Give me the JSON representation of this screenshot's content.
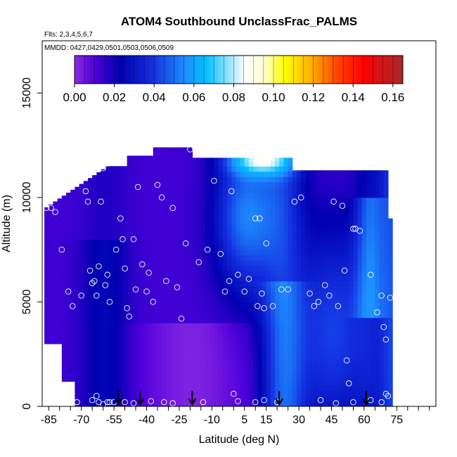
{
  "chart_data": {
    "type": "heatmap",
    "title": "ATOM4 Southbound UnclassFrac_PALMS",
    "subtitle_flights": "Flts: 2,3,4,5,6,7",
    "subtitle_dates": "MMDD: 0427,0429,0501,0503,0506,0509",
    "xlabel": "Latitude (deg N)",
    "ylabel": "Altitude (m)",
    "xlim": [
      -88,
      93
    ],
    "ylim": [
      0,
      17500
    ],
    "x_ticks": [
      -85,
      -70,
      -55,
      -40,
      -25,
      -10,
      5,
      15,
      30,
      45,
      60,
      75
    ],
    "x_tick_labels": [
      "-85",
      "-70",
      "-55",
      "-40",
      "-25",
      "-10",
      "5",
      "15",
      "30",
      "45",
      "60",
      "75"
    ],
    "y_ticks": [
      0,
      5000,
      10000,
      15000
    ],
    "y_tick_labels": [
      "0",
      "5000",
      "10000",
      "15000"
    ],
    "colorbar": {
      "min": 0,
      "max": 0.165,
      "ticks": [
        0.0,
        0.02,
        0.04,
        0.06,
        0.08,
        0.1,
        0.12,
        0.14,
        0.16
      ],
      "tick_labels": [
        "0.00",
        "0.02",
        "0.04",
        "0.06",
        "0.08",
        "0.10",
        "0.12",
        "0.14",
        "0.16"
      ],
      "colors": [
        "#8a2be2",
        "#0000cd",
        "#1e90ff",
        "#00bfff",
        "#ffffff",
        "#ffff00",
        "#ff8c00",
        "#ff0000",
        "#a52a2a"
      ]
    },
    "arrows_latitude": [
      -53,
      -43,
      -19,
      21,
      61
    ],
    "points": [
      [
        -86,
        9500
      ],
      [
        -84,
        9500
      ],
      [
        -82,
        9300
      ],
      [
        -79,
        7500
      ],
      [
        -76,
        5500
      ],
      [
        -74,
        4800
      ],
      [
        -70,
        5300
      ],
      [
        -68,
        10300
      ],
      [
        -67,
        9800
      ],
      [
        -66,
        6500
      ],
      [
        -65,
        5900
      ],
      [
        -64,
        6000
      ],
      [
        -63,
        5300
      ],
      [
        -62,
        6700
      ],
      [
        -61,
        9800
      ],
      [
        -60,
        11400
      ],
      [
        -59,
        5800
      ],
      [
        -58,
        6300
      ],
      [
        -57,
        5000
      ],
      [
        -55,
        11800
      ],
      [
        -54,
        7500
      ],
      [
        -52,
        9000
      ],
      [
        -51,
        8000
      ],
      [
        -50,
        6600
      ],
      [
        -49,
        4700
      ],
      [
        -48,
        4300
      ],
      [
        -46,
        8000
      ],
      [
        -45,
        5600
      ],
      [
        -44,
        10500
      ],
      [
        -42,
        6800
      ],
      [
        -40,
        5500
      ],
      [
        -39,
        6400
      ],
      [
        -37,
        5000
      ],
      [
        -35,
        10600
      ],
      [
        -33,
        10000
      ],
      [
        -31,
        6000
      ],
      [
        -28,
        9500
      ],
      [
        -26,
        5700
      ],
      [
        -24,
        4200
      ],
      [
        -22,
        7800
      ],
      [
        -20,
        12300
      ],
      [
        -16,
        6900
      ],
      [
        -12,
        7500
      ],
      [
        -9,
        10800
      ],
      [
        -6,
        7300
      ],
      [
        -4,
        5500
      ],
      [
        -2,
        6000
      ],
      [
        -1,
        10300
      ],
      [
        2,
        6300
      ],
      [
        5,
        5500
      ],
      [
        7,
        6100
      ],
      [
        10,
        9000
      ],
      [
        11,
        4800
      ],
      [
        12,
        9000
      ],
      [
        13,
        5400
      ],
      [
        14,
        4700
      ],
      [
        15,
        7800
      ],
      [
        18,
        4800
      ],
      [
        22,
        5600
      ],
      [
        25,
        5600
      ],
      [
        28,
        9800
      ],
      [
        31,
        10000
      ],
      [
        35,
        5400
      ],
      [
        37,
        4800
      ],
      [
        39,
        5000
      ],
      [
        42,
        5800
      ],
      [
        44,
        5300
      ],
      [
        46,
        9800
      ],
      [
        48,
        4800
      ],
      [
        50,
        9600
      ],
      [
        51,
        6500
      ],
      [
        52,
        2200
      ],
      [
        53,
        1100
      ],
      [
        55,
        8500
      ],
      [
        56,
        8500
      ],
      [
        58,
        8400
      ],
      [
        63,
        6300
      ],
      [
        66,
        4500
      ],
      [
        68,
        5300
      ],
      [
        69,
        3800
      ],
      [
        70,
        3200
      ],
      [
        71,
        500
      ],
      [
        72,
        5200
      ],
      [
        -72,
        200
      ],
      [
        -65,
        300
      ],
      [
        -62,
        200
      ],
      [
        -60,
        100
      ],
      [
        -58,
        200
      ],
      [
        -50,
        200
      ],
      [
        -46,
        150
      ],
      [
        -38,
        250
      ],
      [
        -32,
        200
      ],
      [
        -28,
        150
      ],
      [
        -14,
        200
      ],
      [
        0,
        600
      ],
      [
        2,
        250
      ],
      [
        10,
        200
      ],
      [
        14,
        300
      ],
      [
        20,
        200
      ],
      [
        40,
        300
      ],
      [
        47,
        150
      ],
      [
        55,
        200
      ],
      [
        63,
        300
      ],
      [
        68,
        200
      ],
      [
        70,
        600
      ],
      [
        -63,
        500
      ],
      [
        -57,
        200
      ],
      [
        -55,
        200
      ]
    ]
  }
}
